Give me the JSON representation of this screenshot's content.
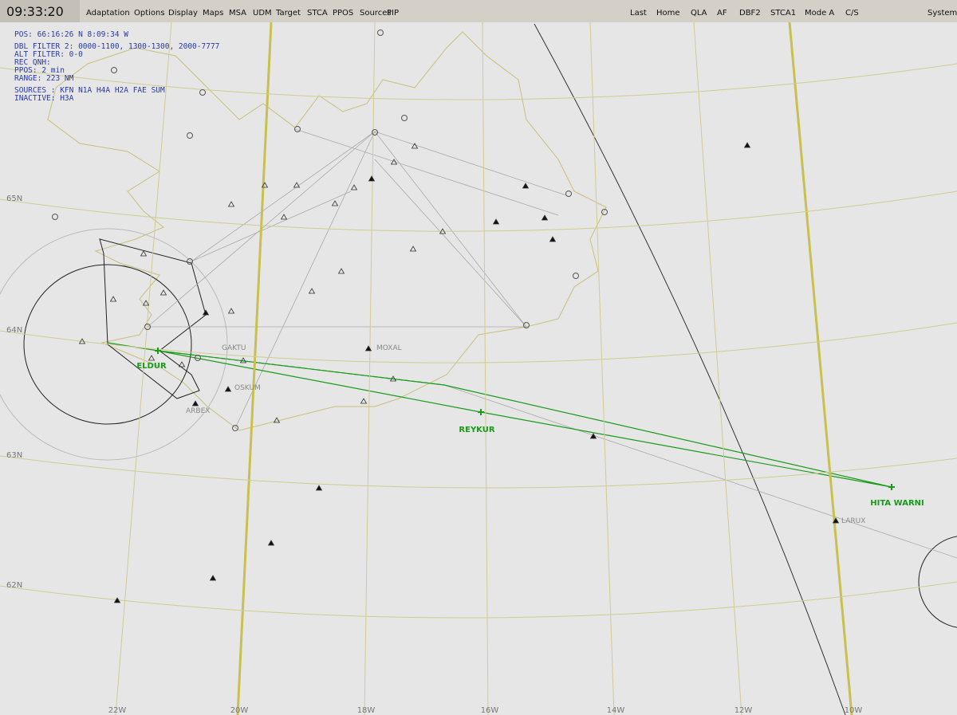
{
  "menu_bar": {
    "time": "09:33:20",
    "left_items": [
      "Adaptation",
      "Options",
      "Display",
      "Maps",
      "MSA",
      "UDM",
      "Target",
      "STCA",
      "PPOS",
      "Sources",
      "PIP"
    ],
    "right_items": [
      "Last",
      "Home",
      "QLA",
      "AF",
      "DBF2",
      "STCA1",
      "Mode A",
      "C/S",
      "System"
    ]
  },
  "info_panel": [
    "POS: 66:16:26 N  8:09:34 W",
    "DBL FILTER 2: 0000-1100, 1300-1300, 2000-7777",
    "ALT FILTER: 0-0",
    "REC QNH:",
    "PPOS: 2 min",
    "RANGE: 223 NM",
    "SOURCES : KFN N1A H4A    H2A FAE SUM",
    "INACTIVE:            H3A"
  ],
  "grid": {
    "lat_labels": [
      "65N",
      "64N",
      "63N",
      "62N"
    ],
    "lon_labels": [
      "22W",
      "20W",
      "18W",
      "16W",
      "14W",
      "12W",
      "10W"
    ]
  },
  "route_points": [
    "ELDUR",
    "REYKUR",
    "HITA WARNI"
  ],
  "fixes": [
    "GAKTU",
    "MOXAL",
    "OSKUM",
    "ARBEX",
    "LARUX"
  ]
}
